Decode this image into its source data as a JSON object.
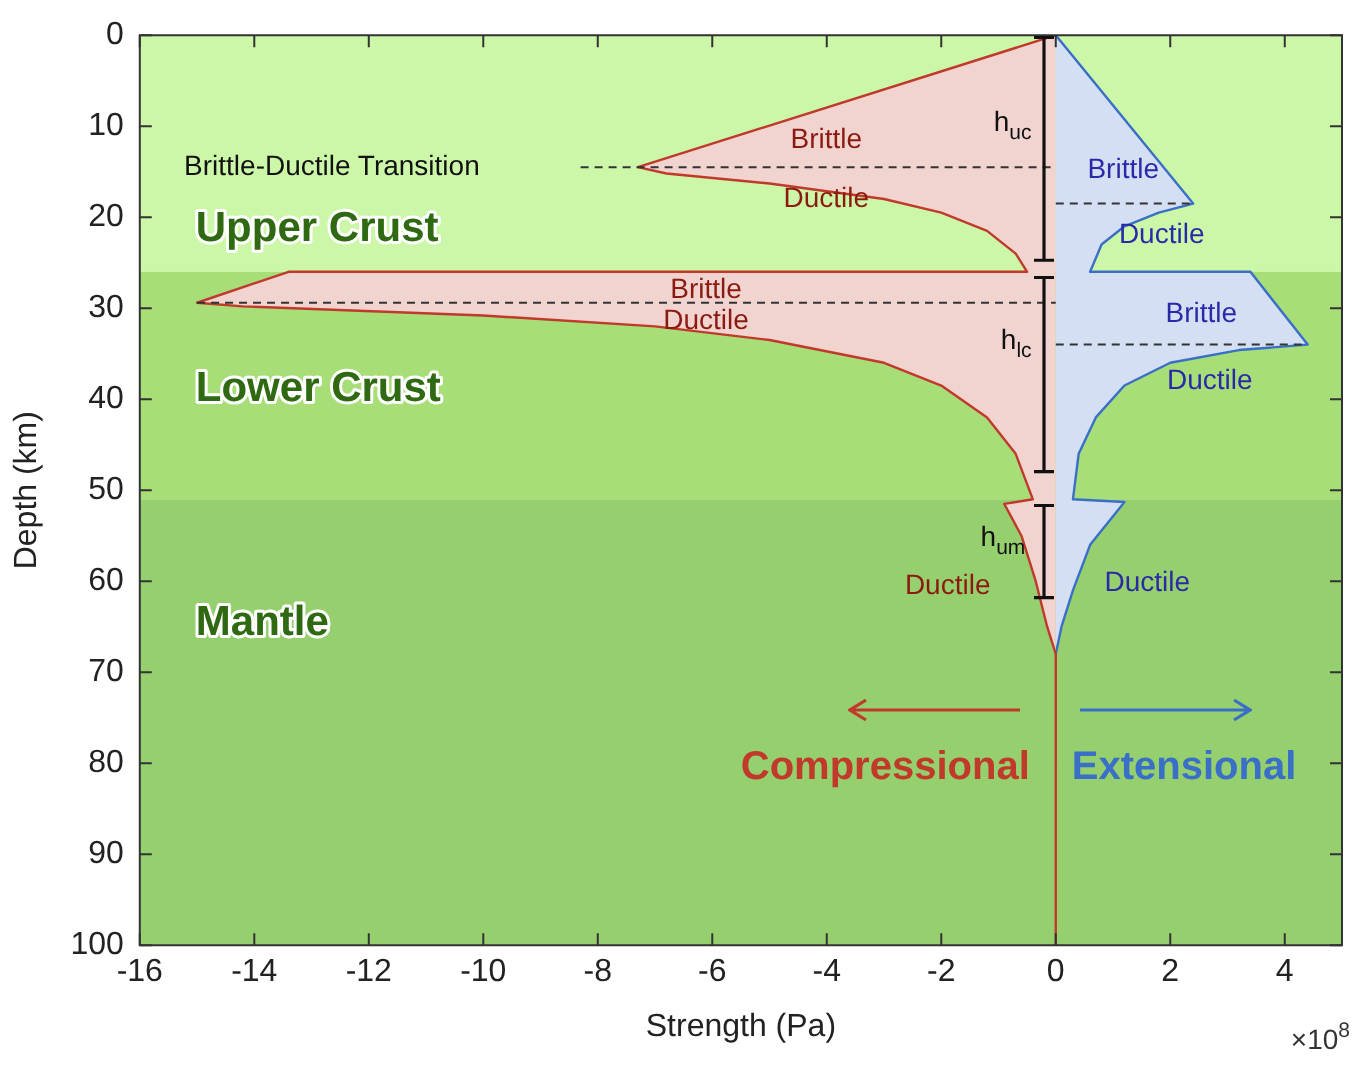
{
  "chart_data": {
    "type": "line",
    "xlabel": "Strength (Pa)",
    "ylabel": "Depth (km)",
    "xlim": [
      -16,
      5
    ],
    "xticks": [
      -16,
      -14,
      -12,
      -10,
      -8,
      -6,
      -4,
      -2,
      0,
      2,
      4
    ],
    "ylim": [
      100,
      0
    ],
    "yticks": [
      0,
      10,
      20,
      30,
      40,
      50,
      60,
      70,
      80,
      90,
      100
    ],
    "grid": false,
    "legend": false,
    "marker": "none",
    "series": [
      {
        "name": "Compressional",
        "color": "#c0392b",
        "x": [
          0,
          -7.3,
          -6.8,
          -5,
          -3,
          -2,
          -1.2,
          -0.7,
          -0.5,
          -13.4,
          -15,
          -14.2,
          -10,
          -7,
          -5,
          -3,
          -2,
          -1.2,
          -0.7,
          -0.4,
          -0.9,
          -0.6,
          -0.35,
          -0.15,
          0,
          0
        ],
        "values": [
          0,
          14.5,
          15.2,
          16.3,
          18,
          19.5,
          21.5,
          24,
          26,
          26,
          29.4,
          29.8,
          30.8,
          32,
          33.5,
          36,
          38.5,
          42,
          46,
          51,
          51.5,
          55,
          60,
          65,
          68,
          100
        ]
      },
      {
        "name": "Extensional",
        "color": "#3a6fc8",
        "x": [
          0,
          2.4,
          1.8,
          1.2,
          0.8,
          0.6,
          3.4,
          4.4,
          3.2,
          2,
          1.2,
          0.7,
          0.4,
          0.3,
          1.2,
          0.6,
          0.3,
          0.1,
          0
        ],
        "values": [
          0,
          18.5,
          19.5,
          21,
          23,
          26,
          26,
          34,
          34.6,
          36,
          38.5,
          42,
          46,
          51,
          51.3,
          56,
          61,
          65,
          68
        ]
      },
      {
        "color": "#333333",
        "line_style": "dashed",
        "x": [
          -8.3,
          0
        ],
        "values": [
          14.5,
          14.5
        ]
      },
      {
        "color": "#333333",
        "line_style": "dashed",
        "x": [
          0,
          2.4
        ],
        "values": [
          18.5,
          18.5
        ]
      },
      {
        "color": "#333333",
        "line_style": "dashed",
        "x": [
          -15,
          0
        ],
        "values": [
          29.4,
          29.4
        ]
      },
      {
        "color": "#333333",
        "line_style": "dashed",
        "x": [
          0,
          4.4
        ],
        "values": [
          34,
          34
        ]
      }
    ],
    "bands": [
      {
        "axis": "y",
        "from": 0,
        "to": 26,
        "label": "Upper Crust",
        "color": "#ccf7a8"
      },
      {
        "axis": "y",
        "from": 26,
        "to": 51,
        "label": "Lower Crust",
        "color": "#a8de78"
      },
      {
        "axis": "y",
        "from": 51,
        "to": 100,
        "label": "Mantle",
        "color": "#96cf6e"
      }
    ],
    "annotations": [
      "Brittle-Ductile Transition",
      "Brittle",
      "Ductile",
      "Brittle",
      "Ductile",
      "h$_{uc}$",
      "h$_{lc}$",
      "h$_{um}$",
      "Ductile",
      "Brittle",
      "Ductile",
      "Brittle",
      "Ductile",
      "Ductile",
      "×10$^{8}$"
    ]
  }
}
